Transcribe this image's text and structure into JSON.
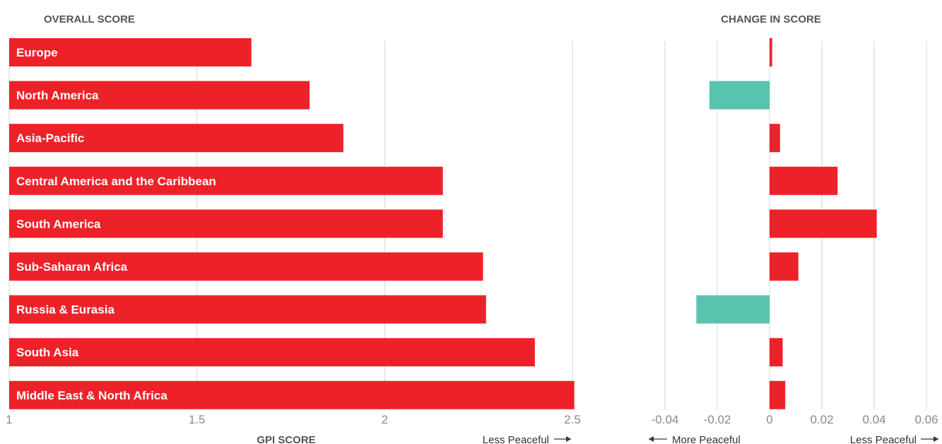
{
  "chart_data": [
    {
      "type": "bar",
      "orientation": "horizontal",
      "title": "OVERALL SCORE",
      "xlabel": "GPI SCORE",
      "direction_right_label": "Less Peaceful",
      "categories": [
        "Europe",
        "North America",
        "Asia-Pacific",
        "Central America and the Caribbean",
        "South America",
        "Sub-Saharan Africa",
        "Russia & Eurasia",
        "South Asia",
        "Middle East & North Africa"
      ],
      "values": [
        1.645,
        1.8,
        1.89,
        2.155,
        2.155,
        2.262,
        2.27,
        2.4,
        2.505
      ],
      "xlim": [
        1,
        2.5
      ],
      "ticks": [
        "1",
        "1.5",
        "2",
        "2.5"
      ],
      "grid": true,
      "color": "#ed2229"
    },
    {
      "type": "bar",
      "orientation": "horizontal",
      "title": "CHANGE IN SCORE",
      "direction_left_label": "More Peaceful",
      "direction_right_label": "Less Peaceful",
      "categories": [
        "Europe",
        "North America",
        "Asia-Pacific",
        "Central America and the Caribbean",
        "South America",
        "Sub-Saharan Africa",
        "Russia & Eurasia",
        "South Asia",
        "Middle East & North Africa"
      ],
      "values": [
        0.001,
        -0.023,
        0.004,
        0.026,
        0.041,
        0.011,
        -0.028,
        0.005,
        0.006
      ],
      "xlim": [
        -0.04,
        0.06
      ],
      "ticks": [
        "-0.04",
        "-0.02",
        "0",
        "0.02",
        "0.04",
        "0.06"
      ],
      "grid": true,
      "positive_color": "#ed2229",
      "negative_color": "#58c3ae"
    }
  ]
}
